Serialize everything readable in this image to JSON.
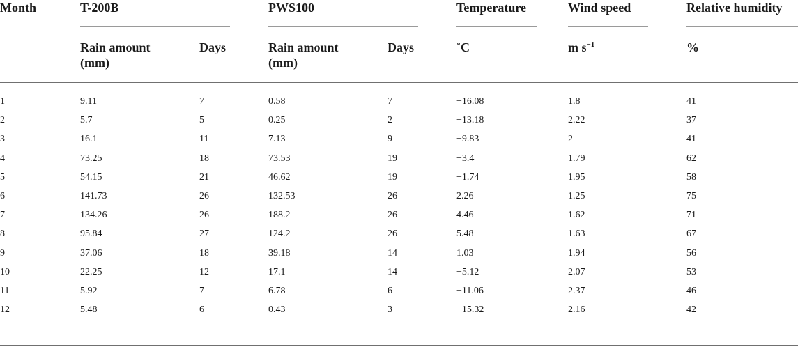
{
  "headers": {
    "month": "Month",
    "t200b": "T-200B",
    "pws100": "PWS100",
    "temperature": "Temperature",
    "wind_speed": "Wind speed",
    "relative_humidity": "Relative humidity"
  },
  "subheaders": {
    "t200b_rain_line1": "Rain amount",
    "t200b_rain_line2": "(mm)",
    "t200b_days": "Days",
    "pws100_rain_line1": "Rain amount",
    "pws100_rain_line2": "(mm)",
    "pws100_days": "Days",
    "temperature_unit": "˚C",
    "wind_unit_base": "m s",
    "wind_unit_exp": "−1",
    "humidity_unit": "%"
  },
  "rows": [
    [
      "1",
      "9.11",
      "7",
      "0.58",
      "7",
      "−16.08",
      "1.8",
      "41"
    ],
    [
      "2",
      "5.7",
      "5",
      "0.25",
      "2",
      "−13.18",
      "2.22",
      "37"
    ],
    [
      "3",
      "16.1",
      "11",
      "7.13",
      "9",
      "−9.83",
      "2",
      "41"
    ],
    [
      "4",
      "73.25",
      "18",
      "73.53",
      "19",
      "−3.4",
      "1.79",
      "62"
    ],
    [
      "5",
      "54.15",
      "21",
      "46.62",
      "19",
      "−1.74",
      "1.95",
      "58"
    ],
    [
      "6",
      "141.73",
      "26",
      "132.53",
      "26",
      "2.26",
      "1.25",
      "75"
    ],
    [
      "7",
      "134.26",
      "26",
      "188.2",
      "26",
      "4.46",
      "1.62",
      "71"
    ],
    [
      "8",
      "95.84",
      "27",
      "124.2",
      "26",
      "5.48",
      "1.63",
      "67"
    ],
    [
      "9",
      "37.06",
      "18",
      "39.18",
      "14",
      "1.03",
      "1.94",
      "56"
    ],
    [
      "10",
      "22.25",
      "12",
      "17.1",
      "14",
      "−5.12",
      "2.07",
      "53"
    ],
    [
      "11",
      "5.92",
      "7",
      "6.78",
      "6",
      "−11.06",
      "2.37",
      "46"
    ],
    [
      "12",
      "5.48",
      "6",
      "0.43",
      "3",
      "−15.32",
      "2.16",
      "42"
    ]
  ]
}
